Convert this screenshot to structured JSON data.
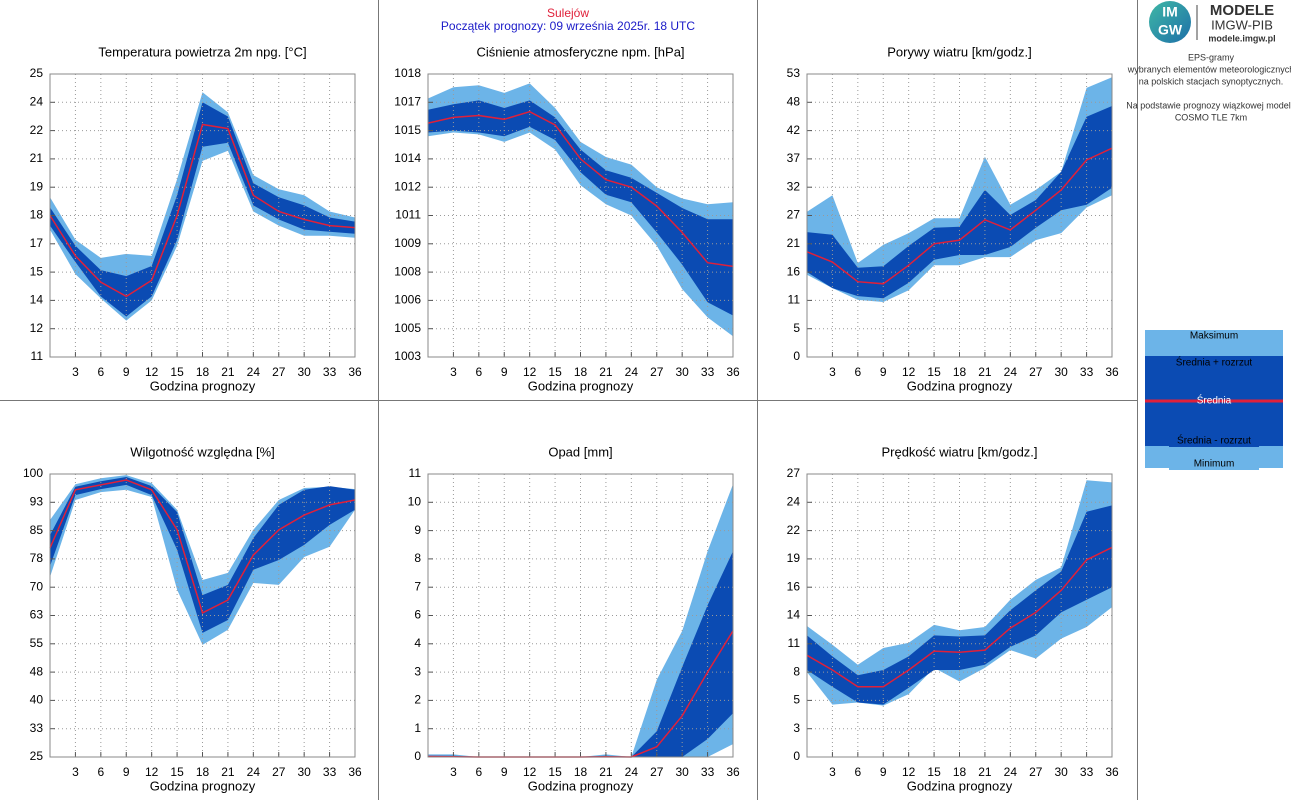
{
  "header": {
    "station": "Sulejów",
    "start": "Początek prognozy: 09 września 2025r. 18 UTC"
  },
  "sidebar": {
    "logo": {
      "icon_top": "IM",
      "icon_bottom": "GW",
      "title": "MODELE",
      "subtitle": "IMGW-PIB",
      "url": "modele.imgw.pl"
    },
    "description": [
      "EPS-gramy",
      "wybranych elementów meteorologicznych",
      "na polskich stacjach  synoptycznych.",
      "Na podstawie prognozy wiązkowej modelu",
      "COSMO TLE 7km"
    ]
  },
  "legend": {
    "items": [
      {
        "name": "Maksimum",
        "color": "#6cb4e8"
      },
      {
        "name": "Średnia + rozrzut",
        "color": "#0b4bb3"
      },
      {
        "name": "Średnia",
        "color": "#e0203a"
      },
      {
        "name": "Średnia - rozrzut",
        "color": "#0b4bb3"
      },
      {
        "name": "Minimum",
        "color": "#6cb4e8"
      }
    ]
  },
  "chart_data": [
    {
      "type": "band",
      "title": "Temperatura powietrza 2m npg. [°C]",
      "xlabel": "Godzina prognozy",
      "x": [
        0,
        3,
        6,
        9,
        12,
        15,
        18,
        21,
        24,
        27,
        30,
        33,
        36
      ],
      "xlim": [
        0,
        36
      ],
      "xticks": [
        3,
        6,
        9,
        12,
        15,
        18,
        21,
        24,
        27,
        30,
        33,
        36
      ],
      "ylim": [
        11,
        25
      ],
      "yticks": [
        11,
        {
          "value": 12.4,
          "label": "12"
        },
        {
          "value": 13.8,
          "label": "14"
        },
        {
          "value": 15.2,
          "label": "15"
        },
        {
          "value": 16.6,
          "label": "17"
        },
        18,
        {
          "value": 19.4,
          "label": "19"
        },
        {
          "value": 20.8,
          "label": "21"
        },
        {
          "value": 22.2,
          "label": "22"
        },
        {
          "value": 23.6,
          "label": "24"
        },
        25
      ],
      "series": [
        {
          "values": [
            18.9,
            16.8,
            15.9,
            16.1,
            16.0,
            19.8,
            24.1,
            23.1,
            20.0,
            19.3,
            19.0,
            18.2,
            17.9
          ]
        },
        {
          "values": [
            18.4,
            16.5,
            15.3,
            15.0,
            15.5,
            19.0,
            23.6,
            22.9,
            19.6,
            18.9,
            18.5,
            17.9,
            17.7
          ]
        },
        {
          "values": [
            18.0,
            16.0,
            14.7,
            14.0,
            14.8,
            18.0,
            22.5,
            22.3,
            19.0,
            18.2,
            17.8,
            17.5,
            17.4
          ]
        },
        {
          "values": [
            17.5,
            15.7,
            14.0,
            13.0,
            14.0,
            16.8,
            21.4,
            21.6,
            18.5,
            17.8,
            17.3,
            17.2,
            17.1
          ]
        },
        {
          "values": [
            17.3,
            15.1,
            13.9,
            12.8,
            13.8,
            16.5,
            20.7,
            21.2,
            18.2,
            17.5,
            17.0,
            17.0,
            16.9
          ]
        }
      ]
    },
    {
      "type": "band",
      "title": "Ciśnienie atmosferyczne npm. [hPa]",
      "xlabel": "Godzina prognozy",
      "x": [
        0,
        3,
        6,
        9,
        12,
        15,
        18,
        21,
        24,
        27,
        30,
        33,
        36
      ],
      "xlim": [
        0,
        36
      ],
      "xticks": [
        3,
        6,
        9,
        12,
        15,
        18,
        21,
        24,
        27,
        30,
        33,
        36
      ],
      "ylim": [
        1003,
        1018
      ],
      "yticks": [
        1003,
        {
          "value": 1004.5,
          "label": "1005"
        },
        1006,
        {
          "value": 1007.5,
          "label": "1008"
        },
        1009,
        {
          "value": 1010.5,
          "label": "1011"
        },
        1012,
        {
          "value": 1013.5,
          "label": "1014"
        },
        1015,
        {
          "value": 1016.5,
          "label": "1017"
        },
        1018
      ],
      "series": [
        {
          "values": [
            1016.7,
            1017.3,
            1017.4,
            1017.0,
            1017.5,
            1016.2,
            1014.4,
            1013.6,
            1013.2,
            1012.0,
            1011.4,
            1011.1,
            1011.2
          ]
        },
        {
          "values": [
            1016.1,
            1016.4,
            1016.6,
            1016.2,
            1016.6,
            1015.7,
            1014.0,
            1012.9,
            1012.5,
            1011.7,
            1010.9,
            1010.3,
            1010.3
          ]
        },
        {
          "values": [
            1015.4,
            1015.7,
            1015.8,
            1015.6,
            1016.0,
            1015.3,
            1013.5,
            1012.4,
            1012.0,
            1011.0,
            1009.6,
            1008.0,
            1007.8
          ]
        },
        {
          "values": [
            1014.9,
            1015.0,
            1014.9,
            1014.7,
            1015.2,
            1014.5,
            1012.8,
            1011.6,
            1011.2,
            1009.6,
            1007.9,
            1005.9,
            1005.2
          ]
        },
        {
          "values": [
            1014.7,
            1014.9,
            1014.8,
            1014.4,
            1014.9,
            1014.0,
            1012.1,
            1011.1,
            1010.5,
            1008.9,
            1006.6,
            1005.1,
            1004.1
          ]
        }
      ]
    },
    {
      "type": "band",
      "title": "Porywy wiatru [km/godz.]",
      "xlabel": "Godzina prognozy",
      "x": [
        0,
        3,
        6,
        9,
        12,
        15,
        18,
        21,
        24,
        27,
        30,
        33,
        36
      ],
      "xlim": [
        0,
        36
      ],
      "xticks": [
        3,
        6,
        9,
        12,
        15,
        18,
        21,
        24,
        27,
        30,
        33,
        36
      ],
      "ylim": [
        0,
        53
      ],
      "yticks": [
        0,
        {
          "value": 5.3,
          "label": "5"
        },
        {
          "value": 10.6,
          "label": "11"
        },
        {
          "value": 15.9,
          "label": "16"
        },
        {
          "value": 21.2,
          "label": "21"
        },
        {
          "value": 26.5,
          "label": "27"
        },
        {
          "value": 31.8,
          "label": "32"
        },
        {
          "value": 37.1,
          "label": "37"
        },
        {
          "value": 42.4,
          "label": "42"
        },
        {
          "value": 47.7,
          "label": "48"
        },
        53
      ],
      "series": [
        {
          "values": [
            27.2,
            30.3,
            17.6,
            21.0,
            23.2,
            26.0,
            26.0,
            37.5,
            28.5,
            31.3,
            34.7,
            50.4,
            52.4
          ]
        },
        {
          "values": [
            23.4,
            22.9,
            16.7,
            17.0,
            20.8,
            24.2,
            24.4,
            31.3,
            26.6,
            29.4,
            34.7,
            45.0,
            47.0
          ]
        },
        {
          "values": [
            19.7,
            17.8,
            14.1,
            13.7,
            17.2,
            21.2,
            21.9,
            25.7,
            23.8,
            27.5,
            31.3,
            36.9,
            39.1
          ]
        },
        {
          "values": [
            15.9,
            12.9,
            11.4,
            11.0,
            13.9,
            18.2,
            19.1,
            19.1,
            20.6,
            24.2,
            27.5,
            28.5,
            31.7
          ]
        },
        {
          "values": [
            15.4,
            12.9,
            10.7,
            10.3,
            12.5,
            17.2,
            17.2,
            18.7,
            18.7,
            21.9,
            23.2,
            28.0,
            30.3
          ]
        }
      ]
    },
    {
      "type": "band",
      "title": "Wilgotność względna [%]",
      "xlabel": "Godzina prognozy",
      "x": [
        0,
        3,
        6,
        9,
        12,
        15,
        18,
        21,
        24,
        27,
        30,
        33,
        36
      ],
      "xlim": [
        0,
        36
      ],
      "xticks": [
        3,
        6,
        9,
        12,
        15,
        18,
        21,
        24,
        27,
        30,
        33,
        36
      ],
      "ylim": [
        25,
        100
      ],
      "yticks": [
        25,
        {
          "value": 32.5,
          "label": "33"
        },
        40,
        {
          "value": 47.5,
          "label": "48"
        },
        55,
        {
          "value": 62.5,
          "label": "63"
        },
        70,
        {
          "value": 77.5,
          "label": "78"
        },
        85,
        {
          "value": 92.5,
          "label": "93"
        },
        100
      ],
      "series": [
        {
          "values": [
            87.8,
            97.3,
            98.9,
            99.7,
            97.6,
            90.5,
            71.9,
            73.8,
            85.2,
            93.1,
            96.3,
            96.6,
            96.0
          ]
        },
        {
          "values": [
            83.8,
            96.6,
            98.1,
            99.2,
            96.8,
            89.9,
            67.9,
            70.6,
            83.0,
            91.8,
            95.8,
            96.8,
            95.8
          ]
        },
        {
          "values": [
            80.4,
            95.8,
            97.1,
            98.4,
            95.8,
            85.2,
            63.2,
            66.6,
            78.5,
            85.2,
            89.1,
            91.8,
            93.1
          ]
        },
        {
          "values": [
            75.6,
            94.4,
            96.0,
            97.1,
            94.4,
            79.9,
            57.9,
            61.3,
            74.6,
            77.2,
            81.2,
            86.5,
            90.5
          ]
        },
        {
          "values": [
            72.7,
            93.1,
            95.2,
            95.8,
            93.9,
            69.3,
            54.7,
            58.7,
            71.1,
            70.6,
            78.0,
            80.7,
            90.5
          ]
        }
      ]
    },
    {
      "type": "band",
      "title": "Opad [mm]",
      "xlabel": "Godzina prognozy",
      "x": [
        0,
        3,
        6,
        9,
        12,
        15,
        18,
        21,
        24,
        27,
        30,
        33,
        36
      ],
      "xlim": [
        0,
        36
      ],
      "xticks": [
        3,
        6,
        9,
        12,
        15,
        18,
        21,
        24,
        27,
        30,
        33,
        36
      ],
      "ylim": [
        0,
        11
      ],
      "yticks": [
        0,
        {
          "value": 1.1,
          "label": "1"
        },
        {
          "value": 2.2,
          "label": "2"
        },
        {
          "value": 3.3,
          "label": "3"
        },
        {
          "value": 4.4,
          "label": "4"
        },
        {
          "value": 5.5,
          "label": "6"
        },
        {
          "value": 6.6,
          "label": "7"
        },
        {
          "value": 7.7,
          "label": "8"
        },
        {
          "value": 8.8,
          "label": "9"
        },
        {
          "value": 9.9,
          "label": "10"
        },
        11
      ],
      "series": [
        {
          "values": [
            0.1,
            0.1,
            0,
            0,
            0,
            0,
            0,
            0.1,
            0,
            3.0,
            4.9,
            8.0,
            10.6
          ]
        },
        {
          "values": [
            0.05,
            0.05,
            0,
            0,
            0,
            0,
            0,
            0.05,
            0,
            1.0,
            3.5,
            5.9,
            8.0
          ]
        },
        {
          "values": [
            0.02,
            0.01,
            0,
            0,
            0,
            0,
            0,
            0.01,
            0,
            0.4,
            1.6,
            3.3,
            4.9
          ]
        },
        {
          "values": [
            0,
            0,
            0,
            0,
            0,
            0,
            0,
            0,
            0,
            0,
            0,
            0.7,
            1.7
          ]
        },
        {
          "values": [
            0,
            0,
            0,
            0,
            0,
            0,
            0,
            0,
            0,
            0,
            0,
            0,
            0.5
          ]
        }
      ]
    },
    {
      "type": "band",
      "title": "Prędkość wiatru [km/godz.]",
      "xlabel": "Godzina prognozy",
      "x": [
        0,
        3,
        6,
        9,
        12,
        15,
        18,
        21,
        24,
        27,
        30,
        33,
        36
      ],
      "xlim": [
        0,
        36
      ],
      "xticks": [
        3,
        6,
        9,
        12,
        15,
        18,
        21,
        24,
        27,
        30,
        33,
        36
      ],
      "ylim": [
        0,
        27
      ],
      "yticks": [
        0,
        {
          "value": 2.7,
          "label": "3"
        },
        {
          "value": 5.4,
          "label": "5"
        },
        {
          "value": 8.1,
          "label": "8"
        },
        {
          "value": 10.8,
          "label": "11"
        },
        {
          "value": 13.5,
          "label": "14"
        },
        {
          "value": 16.2,
          "label": "16"
        },
        {
          "value": 18.9,
          "label": "19"
        },
        {
          "value": 21.6,
          "label": "22"
        },
        {
          "value": 24.3,
          "label": "24"
        },
        27
      ],
      "series": [
        {
          "values": [
            12.5,
            10.7,
            8.8,
            10.4,
            10.9,
            12.6,
            12.1,
            12.4,
            15.0,
            16.9,
            18.1,
            26.4,
            26.2
          ]
        },
        {
          "values": [
            11.6,
            9.6,
            7.8,
            8.3,
            9.6,
            11.6,
            11.5,
            11.6,
            14.0,
            15.9,
            17.7,
            23.4,
            24.0
          ]
        },
        {
          "values": [
            9.7,
            8.3,
            6.7,
            6.7,
            8.3,
            10.1,
            10.0,
            10.2,
            12.3,
            13.8,
            15.9,
            18.8,
            20.0
          ]
        },
        {
          "values": [
            8.3,
            6.7,
            5.2,
            5.0,
            6.6,
            8.3,
            8.3,
            8.8,
            10.5,
            11.6,
            13.8,
            15.0,
            16.2
          ]
        },
        {
          "values": [
            8.1,
            5.0,
            5.2,
            4.9,
            6.0,
            8.5,
            7.2,
            8.5,
            10.2,
            9.4,
            11.3,
            12.4,
            14.3
          ]
        }
      ]
    }
  ]
}
